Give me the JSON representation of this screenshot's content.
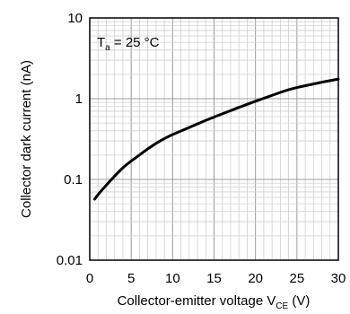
{
  "chart_data": {
    "type": "line",
    "ylabel": "Collector dark current (nA)",
    "xlabel_main": "Collector-emitter voltage V",
    "xlabel_sub": "CE",
    "xlabel_unit": " (V)",
    "annotation_main": "T",
    "annotation_sub": "a",
    "annotation_rest": " = 25 °C",
    "x_ticks": [
      "0",
      "5",
      "10",
      "15",
      "20",
      "25",
      "30"
    ],
    "y_ticks": [
      "0.01",
      "0.1",
      "1",
      "10"
    ],
    "xlim": [
      0,
      30
    ],
    "ylim": [
      0.01,
      10
    ],
    "y_scale": "log",
    "grid": true,
    "series": [
      {
        "x": [
          0.6,
          1,
          2,
          3,
          4,
          5,
          6,
          7,
          8,
          9,
          10,
          12,
          14,
          16,
          18,
          20,
          22,
          24,
          26,
          28,
          30
        ],
        "values": [
          0.057,
          0.065,
          0.085,
          0.11,
          0.14,
          0.17,
          0.2,
          0.24,
          0.28,
          0.32,
          0.36,
          0.44,
          0.54,
          0.65,
          0.78,
          0.93,
          1.1,
          1.3,
          1.45,
          1.6,
          1.75
        ],
        "color": "#000000"
      }
    ]
  }
}
